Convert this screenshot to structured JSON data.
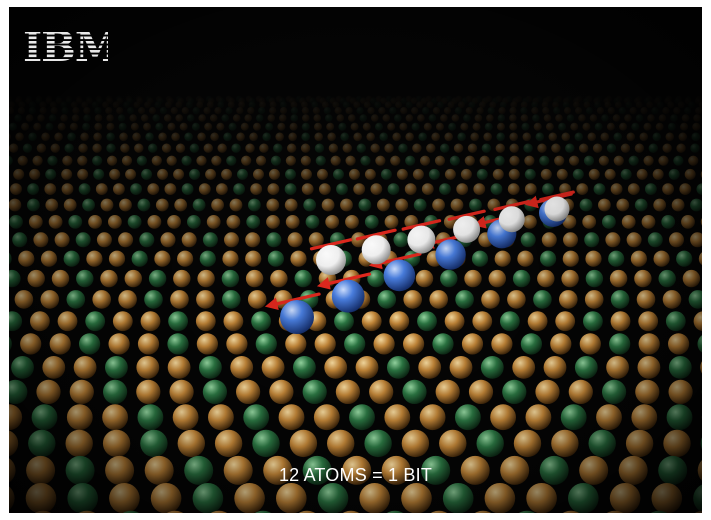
{
  "logo": {
    "text": "IBM"
  },
  "caption": "12 ATOMS = 1 BIT",
  "colors": {
    "background": "#050505",
    "lattice_gold": "#c88a3a",
    "lattice_green": "#2d7a45",
    "atom_blue": "#4a7fe0",
    "atom_white": "#f2f2f2",
    "spin_arrow": "#e0281e",
    "caption_text": "#ffffff"
  },
  "atom_row": {
    "count": 12,
    "pattern": [
      "blue",
      "white",
      "blue",
      "white",
      "blue",
      "white",
      "blue",
      "white",
      "blue",
      "white",
      "blue",
      "white"
    ]
  }
}
